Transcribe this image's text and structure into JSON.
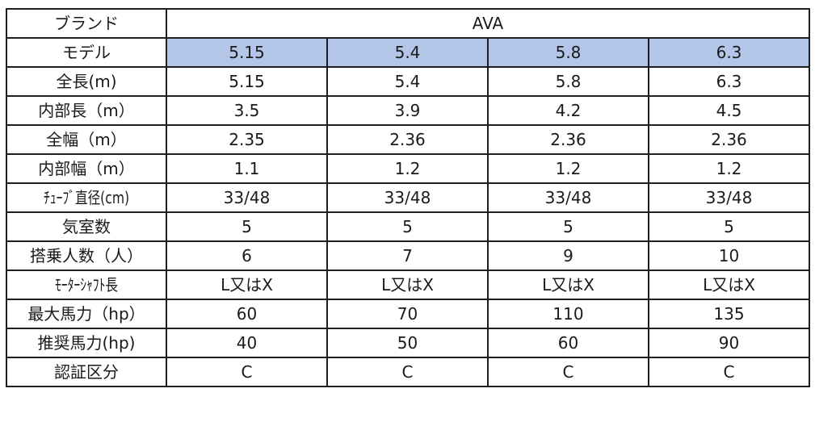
{
  "header": {
    "label": "ブランド",
    "brand": "AVA"
  },
  "model": {
    "label": "モデル",
    "values": [
      "5.15",
      "5.4",
      "5.8",
      "6.3"
    ],
    "highlight_color": "#b4c6e7"
  },
  "rows": [
    {
      "label": "全長(m)",
      "values": [
        "5.15",
        "5.4",
        "5.8",
        "6.3"
      ]
    },
    {
      "label": "内部長（m）",
      "values": [
        "3.5",
        "3.9",
        "4.2",
        "4.5"
      ]
    },
    {
      "label": "全幅（m）",
      "values": [
        "2.35",
        "2.36",
        "2.36",
        "2.36"
      ]
    },
    {
      "label": "内部幅（m）",
      "values": [
        "1.1",
        "1.2",
        "1.2",
        "1.2"
      ]
    },
    {
      "label": "ﾁｭｰﾌﾞ直径(cm)",
      "values": [
        "33/48",
        "33/48",
        "33/48",
        "33/48"
      ]
    },
    {
      "label": "気室数",
      "values": [
        "5",
        "5",
        "5",
        "5"
      ]
    },
    {
      "label": "搭乗人数（人）",
      "values": [
        "6",
        "7",
        "9",
        "10"
      ]
    },
    {
      "label": "ﾓｰﾀｰｼｬﾌﾄ長",
      "values": [
        "L又はX",
        "L又はX",
        "L又はX",
        "L又はX"
      ]
    },
    {
      "label": "最大馬力（hp）",
      "values": [
        "60",
        "70",
        "110",
        "135"
      ]
    },
    {
      "label": "推奨馬力(hp)",
      "values": [
        "40",
        "50",
        "60",
        "90"
      ]
    },
    {
      "label": "認証区分",
      "values": [
        "C",
        "C",
        "C",
        "C"
      ]
    }
  ]
}
